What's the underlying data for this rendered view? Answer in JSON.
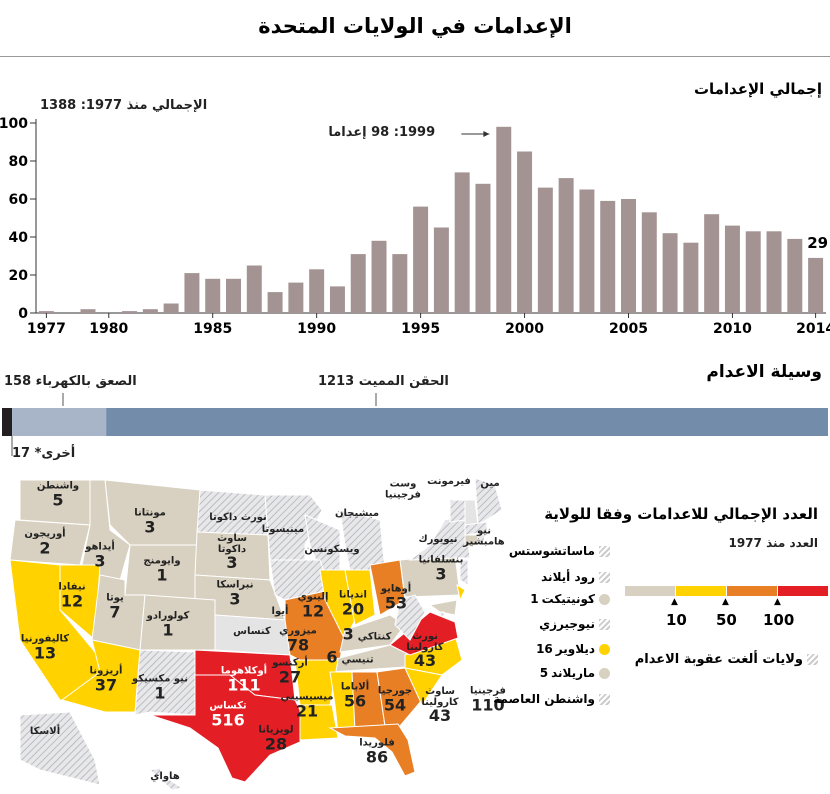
{
  "title": "الإعدامات في الولايات المتحدة",
  "colors": {
    "bar": "#a39392",
    "beige": "#d8d0c0",
    "yellow": "#ffd200",
    "orange": "#e87f24",
    "red": "#e31e24",
    "none": "#e4e4e4",
    "injection": "#738ca9",
    "electrocution": "#a8b5c9",
    "other": "#231f20"
  },
  "chart_data": [
    {
      "type": "bar",
      "title": "إجمالي الإعدامات",
      "subtitle": "الإجمالي منذ 1977: 1388",
      "categories": [
        1977,
        1978,
        1979,
        1980,
        1981,
        1982,
        1983,
        1984,
        1985,
        1986,
        1987,
        1988,
        1989,
        1990,
        1991,
        1992,
        1993,
        1994,
        1995,
        1996,
        1997,
        1998,
        1999,
        2000,
        2001,
        2002,
        2003,
        2004,
        2005,
        2006,
        2007,
        2008,
        2009,
        2010,
        2011,
        2012,
        2013,
        2014
      ],
      "values": [
        1,
        0,
        2,
        0,
        1,
        2,
        5,
        21,
        18,
        18,
        25,
        11,
        16,
        23,
        14,
        31,
        38,
        31,
        56,
        45,
        74,
        68,
        98,
        85,
        66,
        71,
        65,
        59,
        60,
        53,
        42,
        37,
        52,
        46,
        43,
        43,
        39,
        29
      ],
      "x_tick_labels": [
        "1977",
        "1980",
        "1985",
        "1990",
        "1995",
        "2000",
        "2005",
        "2010",
        "2014"
      ],
      "y_tick_labels": [
        "0",
        "20",
        "40",
        "60",
        "80",
        "100"
      ],
      "ylim": [
        0,
        100
      ],
      "annotations": {
        "peak": "1999: 98 إعداما",
        "last": "29"
      },
      "grid": false
    },
    {
      "type": "bar",
      "title": "وسيلة الاعدام",
      "orientation": "stacked-horizontal",
      "segments": [
        {
          "name": "أخرى*",
          "value": 17
        },
        {
          "name": "الصعق بالكهرباء",
          "value": 158
        },
        {
          "name": "الحقن المميت",
          "value": 1213
        }
      ],
      "labels": {
        "other": "أخرى* 17",
        "electrocution": "الصعق بالكهرباء 158",
        "injection": "الحقن المميت 1213"
      }
    }
  ],
  "map": {
    "title": "العدد الإجمالي للاعدامات وفقا للولاية",
    "subtitle": "العدد منذ 1977",
    "scale_ticks": [
      "10",
      "50",
      "100"
    ],
    "abolished_label": "ولايات ألغت عقوبة الاعدام",
    "states": [
      {
        "name": "واشنطن",
        "value": "5",
        "cat": "beige"
      },
      {
        "name": "مونتانا",
        "value": "3",
        "cat": "beige"
      },
      {
        "name": "أوريجون",
        "value": "2",
        "cat": "beige"
      },
      {
        "name": "أيداهو",
        "value": "3",
        "cat": "beige"
      },
      {
        "name": "وايومنج",
        "value": "1",
        "cat": "beige"
      },
      {
        "name": "نورث داكوتا",
        "value": "",
        "cat": "hatch"
      },
      {
        "name": "ساوث داكوتا",
        "value": "3",
        "cat": "beige"
      },
      {
        "name": "نبراسكا",
        "value": "3",
        "cat": "beige"
      },
      {
        "name": "مينيسوتا",
        "value": "",
        "cat": "hatch"
      },
      {
        "name": "ويسكونسن",
        "value": "",
        "cat": "hatch"
      },
      {
        "name": "ميشيجان",
        "value": "",
        "cat": "hatch"
      },
      {
        "name": "أيوا",
        "value": "",
        "cat": "hatch"
      },
      {
        "name": "كنساس",
        "value": "",
        "cat": "none"
      },
      {
        "name": "نيفادا",
        "value": "12",
        "cat": "yellow"
      },
      {
        "name": "يوتا",
        "value": "7",
        "cat": "beige"
      },
      {
        "name": "كولورادو",
        "value": "1",
        "cat": "beige"
      },
      {
        "name": "كاليفورنيا",
        "value": "13",
        "cat": "yellow"
      },
      {
        "name": "أريزونا",
        "value": "37",
        "cat": "yellow"
      },
      {
        "name": "نيو مكسيكو",
        "value": "1",
        "cat": "hatch"
      },
      {
        "name": "أوكلاهوما",
        "value": "111",
        "cat": "red"
      },
      {
        "name": "تكساس",
        "value": "516",
        "cat": "red"
      },
      {
        "name": "ميزوري",
        "value": "78",
        "cat": "orange"
      },
      {
        "name": "إلينوي",
        "value": "12",
        "cat": "yellow"
      },
      {
        "name": "انديانا",
        "value": "20",
        "cat": "yellow"
      },
      {
        "name": "أوهايو",
        "value": "53",
        "cat": "orange"
      },
      {
        "name": "بنسلفانيا",
        "value": "3",
        "cat": "beige"
      },
      {
        "name": "نيويورك",
        "value": "",
        "cat": "hatch"
      },
      {
        "name": "كنتاكي",
        "value": "3",
        "cat": "beige"
      },
      {
        "name": "تنيسي",
        "value": "6",
        "cat": "beige"
      },
      {
        "name": "أركنسو",
        "value": "27",
        "cat": "yellow"
      },
      {
        "name": "لويزيانا",
        "value": "28",
        "cat": "yellow"
      },
      {
        "name": "ميسيسيبي",
        "value": "21",
        "cat": "yellow"
      },
      {
        "name": "ألاباما",
        "value": "56",
        "cat": "orange"
      },
      {
        "name": "جورجيا",
        "value": "54",
        "cat": "orange"
      },
      {
        "name": "فلوريدا",
        "value": "86",
        "cat": "orange"
      },
      {
        "name": "نورث كارولينا",
        "value": "43",
        "cat": "yellow"
      },
      {
        "name": "ساوث كارولينا",
        "value": "43",
        "cat": "yellow"
      },
      {
        "name": "فرجينيا",
        "value": "110",
        "cat": "red"
      },
      {
        "name": "وست فرجينيا",
        "value": "",
        "cat": "hatch"
      },
      {
        "name": "فيرمونت",
        "value": "",
        "cat": "hatch"
      },
      {
        "name": "مين",
        "value": "",
        "cat": "hatch"
      },
      {
        "name": "نيو هامبشير",
        "value": "",
        "cat": "none"
      },
      {
        "name": "ألاسكا",
        "value": "",
        "cat": "hatch"
      },
      {
        "name": "هاواي",
        "value": "",
        "cat": "hatch"
      }
    ],
    "callouts": [
      {
        "name": "ماساتشوستس",
        "value": "",
        "cat": "hatch"
      },
      {
        "name": "رود أيلاند",
        "value": "",
        "cat": "hatch"
      },
      {
        "name": "كونيتيكت",
        "value": "1",
        "cat": "beige"
      },
      {
        "name": "نيوجيرزي",
        "value": "",
        "cat": "hatch"
      },
      {
        "name": "ديلاوير",
        "value": "16",
        "cat": "yellow"
      },
      {
        "name": "ماريلاند",
        "value": "5",
        "cat": "beige"
      },
      {
        "name": "واشنطن العاصمة",
        "value": "",
        "cat": "hatch"
      }
    ]
  }
}
